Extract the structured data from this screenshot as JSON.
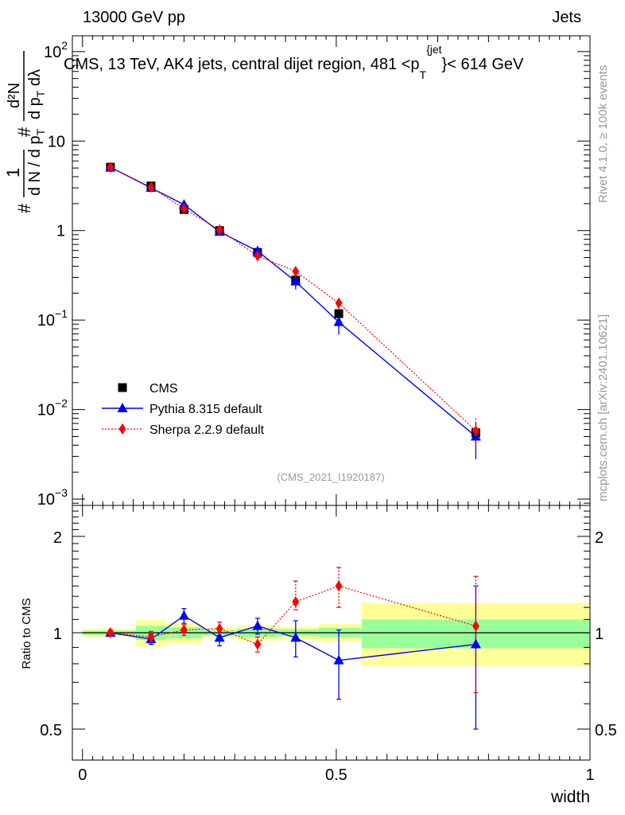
{
  "header": {
    "beam": "13000 GeV pp",
    "category": "Jets",
    "side_rivet": "Rivet 4.1.0, ≥ 100k events",
    "side_mcplots": "mcplots.cern.ch [arXiv:2401.10621]"
  },
  "chart_data": [
    {
      "type": "scatter",
      "title": "CMS, 13 TeV, AK4 jets, central dijet region, 481 <p_T^{jet}< 614 GeV",
      "title_parts": {
        "lead": "CMS, 13 TeV, AK4 jets, central dijet region, 481 <p",
        "sub": "T",
        "sup": "{jet",
        "tail": "}< 614 GeV"
      },
      "ylabel": "1/(dN/dp_T) d²N/(dp_T dλ)",
      "ylabel_parts": {
        "hash": "#",
        "num": "1",
        "den": "d N / d p",
        "den_sub": "T",
        "hash2": "#",
        "num2": "d²N",
        "den2": "d p",
        "den2_sub": "T",
        "den2_tail": " dλ"
      },
      "yscale": "log",
      "ylim": [
        0.00085,
        150
      ],
      "y_ticks": [
        {
          "value": 0.001,
          "label": "10",
          "exp": "−3"
        },
        {
          "value": 0.01,
          "label": "10",
          "exp": "−2"
        },
        {
          "value": 0.1,
          "label": "10",
          "exp": "−1"
        },
        {
          "value": 1,
          "label": "1",
          "exp": ""
        },
        {
          "value": 10,
          "label": "10",
          "exp": ""
        },
        {
          "value": 100,
          "label": "10",
          "exp": "2"
        }
      ],
      "xlim": [
        -0.02,
        1.0
      ],
      "watermark": "(CMS_2021_I1920187)",
      "legend": {
        "position": "lower-left",
        "entries": [
          "CMS",
          "Pythia 8.315 default",
          "Sherpa 2.2.9 default"
        ]
      },
      "x": [
        0.055,
        0.135,
        0.2,
        0.27,
        0.345,
        0.42,
        0.505,
        0.775
      ],
      "series": [
        {
          "name": "CMS",
          "color": "#000000",
          "marker": "square",
          "values": [
            5.1,
            3.15,
            1.72,
            1.0,
            0.57,
            0.28,
            0.118,
            0.0055
          ]
        },
        {
          "name": "Pythia 8.315 default",
          "color": "#0000ff",
          "marker": "triangle",
          "line": "solid",
          "values": [
            5.1,
            3.0,
            1.95,
            0.97,
            0.59,
            0.27,
            0.095,
            0.005
          ],
          "err_up": [
            0.3,
            0.25,
            0.18,
            0.09,
            0.08,
            0.05,
            0.028,
            0.0022
          ],
          "err_down": [
            0.3,
            0.25,
            0.18,
            0.09,
            0.08,
            0.05,
            0.026,
            0.0022
          ]
        },
        {
          "name": "Sherpa 2.2.9 default",
          "color": "#ff0000",
          "marker": "diamond",
          "line": "dotted",
          "values": [
            5.1,
            3.05,
            1.75,
            1.02,
            0.52,
            0.35,
            0.155,
            0.0058
          ],
          "err_up": [
            0.2,
            0.15,
            0.08,
            0.05,
            0.04,
            0.04,
            0.022,
            0.0022
          ],
          "err_down": [
            0.2,
            0.15,
            0.08,
            0.05,
            0.04,
            0.04,
            0.022,
            0.0022
          ]
        }
      ]
    },
    {
      "type": "scatter",
      "ylabel": "Ratio to CMS",
      "xlabel": "width",
      "yscale": "log",
      "ylim": [
        0.4,
        2.5
      ],
      "y_ticks": [
        {
          "value": 0.5,
          "label": "0.5"
        },
        {
          "value": 1,
          "label": "1"
        },
        {
          "value": 2,
          "label": "2"
        }
      ],
      "xlim": [
        -0.02,
        1.0
      ],
      "x_ticks": [
        {
          "value": 0,
          "label": "0"
        },
        {
          "value": 0.5,
          "label": "0.5"
        },
        {
          "value": 1,
          "label": "1"
        }
      ],
      "bands": [
        {
          "x0": 0.0,
          "x1": 0.105,
          "green": [
            0.985,
            1.015
          ],
          "yellow": [
            0.97,
            1.03
          ]
        },
        {
          "x0": 0.105,
          "x1": 0.165,
          "green": [
            0.95,
            1.05
          ],
          "yellow": [
            0.905,
            1.095
          ]
        },
        {
          "x0": 0.165,
          "x1": 0.235,
          "green": [
            0.96,
            1.04
          ],
          "yellow": [
            0.925,
            1.075
          ]
        },
        {
          "x0": 0.235,
          "x1": 0.305,
          "green": [
            0.98,
            1.02
          ],
          "yellow": [
            0.965,
            1.035
          ]
        },
        {
          "x0": 0.305,
          "x1": 0.385,
          "green": [
            0.97,
            1.03
          ],
          "yellow": [
            0.945,
            1.055
          ]
        },
        {
          "x0": 0.385,
          "x1": 0.465,
          "green": [
            0.975,
            1.025
          ],
          "yellow": [
            0.955,
            1.045
          ]
        },
        {
          "x0": 0.465,
          "x1": 0.55,
          "green": [
            0.97,
            1.035
          ],
          "yellow": [
            0.94,
            1.065
          ]
        },
        {
          "x0": 0.55,
          "x1": 1.0,
          "green": [
            0.895,
            1.1
          ],
          "yellow": [
            0.785,
            1.24
          ]
        }
      ],
      "reference": 1.0,
      "series": [
        {
          "name": "Pythia 8.315 default",
          "color": "#0000ff",
          "marker": "triangle",
          "line": "solid",
          "values": [
            1.0,
            0.955,
            1.13,
            0.965,
            1.05,
            0.965,
            0.82,
            0.92
          ],
          "err_low": [
            0.98,
            0.92,
            1.07,
            0.91,
            0.99,
            0.84,
            0.62,
            0.5
          ],
          "err_high": [
            1.02,
            0.99,
            1.19,
            1.02,
            1.11,
            1.09,
            1.02,
            1.4
          ]
        },
        {
          "name": "Sherpa 2.2.9 default",
          "color": "#ff0000",
          "marker": "diamond",
          "line": "dotted",
          "values": [
            1.0,
            0.97,
            1.02,
            1.03,
            0.92,
            1.25,
            1.4,
            1.05
          ],
          "err_low": [
            0.98,
            0.93,
            0.98,
            0.98,
            0.87,
            1.18,
            1.2,
            0.65
          ],
          "err_high": [
            1.02,
            1.01,
            1.06,
            1.08,
            0.97,
            1.45,
            1.6,
            1.5
          ]
        }
      ]
    }
  ]
}
